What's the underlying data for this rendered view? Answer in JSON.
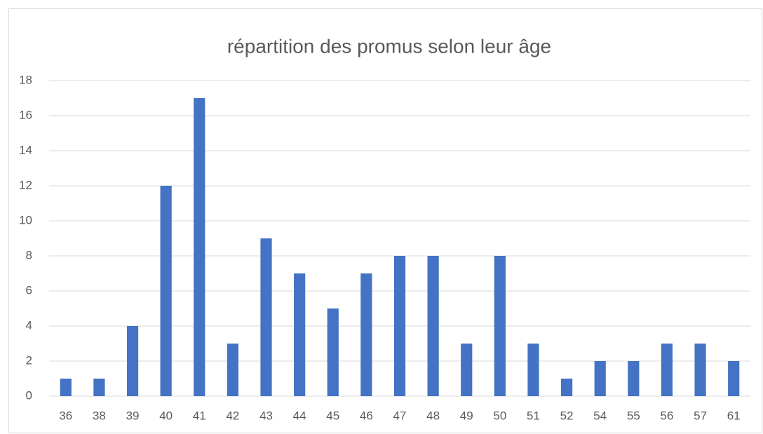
{
  "chart_data": {
    "type": "bar",
    "title": "répartition des promus selon leur âge",
    "categories": [
      "36",
      "38",
      "39",
      "40",
      "41",
      "42",
      "43",
      "44",
      "45",
      "46",
      "47",
      "48",
      "49",
      "50",
      "51",
      "52",
      "54",
      "55",
      "56",
      "57",
      "61"
    ],
    "values": [
      1,
      1,
      4,
      12,
      17,
      3,
      9,
      7,
      5,
      7,
      8,
      8,
      3,
      8,
      3,
      1,
      2,
      2,
      3,
      3,
      2
    ],
    "color": "#4472c4",
    "ylim": [
      0,
      18
    ],
    "yticks": [
      0,
      2,
      4,
      6,
      8,
      10,
      12,
      14,
      16,
      18
    ],
    "grid": true
  }
}
